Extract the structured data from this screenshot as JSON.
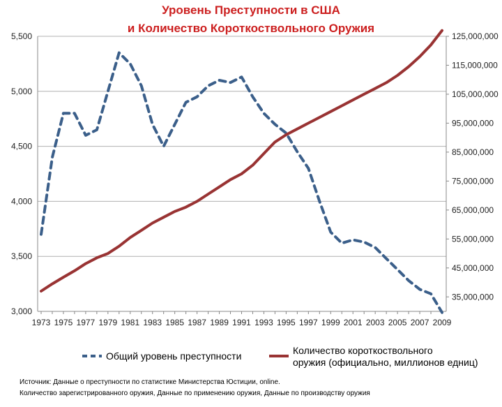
{
  "chart_data": {
    "type": "line",
    "title": [
      "Уровень Преступности в США",
      "и Количество Короткоствольного Оружия"
    ],
    "x": [
      1973,
      1974,
      1975,
      1976,
      1977,
      1978,
      1979,
      1980,
      1981,
      1982,
      1983,
      1984,
      1985,
      1986,
      1987,
      1988,
      1989,
      1990,
      1991,
      1992,
      1993,
      1994,
      1995,
      1996,
      1997,
      1998,
      1999,
      2000,
      2001,
      2002,
      2003,
      2004,
      2005,
      2006,
      2007,
      2008,
      2009
    ],
    "x_tick_labels": [
      "1973",
      "1975",
      "1977",
      "1979",
      "1981",
      "1983",
      "1985",
      "1987",
      "1989",
      "1991",
      "1993",
      "1995",
      "1997",
      "1999",
      "2001",
      "2003",
      "2005",
      "2007",
      "2009"
    ],
    "y_left": {
      "range": [
        3000,
        5500
      ],
      "ticks": [
        3000,
        3500,
        4000,
        4500,
        5000,
        5500
      ],
      "tick_labels": [
        "3,000",
        "3,500",
        "4,000",
        "4,500",
        "5,000",
        "5,500"
      ]
    },
    "y_right": {
      "range": [
        30000000,
        125000000
      ],
      "ticks": [
        35000000,
        45000000,
        55000000,
        65000000,
        75000000,
        85000000,
        95000000,
        105000000,
        115000000,
        125000000
      ],
      "tick_labels": [
        "35,000,000",
        "45,000,000",
        "55,000,000",
        "65,000,000",
        "75,000,000",
        "85,000,000",
        "95,000,000",
        "105,000,000",
        "115,000,000",
        "125,000,000"
      ]
    },
    "series": [
      {
        "name": "Общий уровень преступности",
        "axis": "left",
        "style": "dashed",
        "color": "#3b5f8a",
        "values": [
          3700,
          4400,
          4800,
          4800,
          4600,
          4650,
          5000,
          5350,
          5250,
          5050,
          4700,
          4500,
          4700,
          4900,
          4950,
          5050,
          5100,
          5080,
          5130,
          4950,
          4800,
          4700,
          4620,
          4450,
          4300,
          4000,
          3720,
          3620,
          3650,
          3630,
          3580,
          3480,
          3380,
          3280,
          3200,
          3160,
          2990
        ]
      },
      {
        "name": "Количество короткоствольного оружия (официально, миллионов едниц)",
        "name_lines": [
          "Количество короткоствольного",
          "оружия (официально, миллионов едниц)"
        ],
        "axis": "right",
        "style": "solid",
        "color": "#993333",
        "values": [
          37000000,
          39500000,
          41800000,
          44000000,
          46500000,
          48500000,
          50000000,
          52500000,
          55500000,
          58000000,
          60500000,
          62500000,
          64500000,
          66000000,
          68000000,
          70500000,
          73000000,
          75500000,
          77500000,
          80500000,
          84500000,
          88500000,
          91000000,
          93000000,
          95000000,
          97000000,
          99000000,
          101000000,
          103000000,
          105000000,
          107000000,
          109000000,
          111500000,
          114500000,
          118000000,
          122000000,
          127000000
        ]
      }
    ],
    "grid": "horizontal",
    "legend_position": "bottom",
    "legend": [
      {
        "label": "Общий уровень преступности",
        "color": "#3b5f8a",
        "style": "dashed"
      },
      {
        "label_lines": [
          "Количество короткоствольного",
          "оружия (официально, миллионов едниц)"
        ],
        "color": "#993333",
        "style": "solid"
      }
    ],
    "source": [
      "Источник: Данные о преступности по статистике Министерства Юстиции, online.",
      "Количество зарегистрированного оружия, Данные по применению оружия, Данные по производству оружия"
    ],
    "colors": {
      "title": "#cc1f1f",
      "crime": "#3b5f8a",
      "guns": "#993333",
      "grid": "#b0b0b0",
      "text": "#222222"
    }
  }
}
